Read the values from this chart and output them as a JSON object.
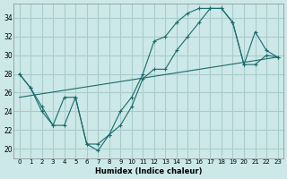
{
  "xlabel": "Humidex (Indice chaleur)",
  "bg_color": "#cce8e8",
  "grid_color": "#aacccc",
  "line_color": "#1a6b6b",
  "xlim": [
    -0.5,
    23.5
  ],
  "ylim": [
    19.0,
    35.5
  ],
  "xticks": [
    0,
    1,
    2,
    3,
    4,
    5,
    6,
    7,
    8,
    9,
    10,
    11,
    12,
    13,
    14,
    15,
    16,
    17,
    18,
    19,
    20,
    21,
    22,
    23
  ],
  "yticks": [
    20,
    22,
    24,
    26,
    28,
    30,
    32,
    34
  ],
  "line1_x": [
    0,
    1,
    2,
    3,
    4,
    5,
    6,
    7,
    8,
    9,
    10,
    11,
    12,
    13,
    14,
    15,
    16,
    17,
    18,
    19,
    20,
    21,
    22,
    23
  ],
  "line1_y": [
    28,
    26.5,
    24.5,
    22.5,
    22.5,
    25.5,
    20.5,
    19.8,
    21.5,
    22.5,
    24.5,
    27.5,
    28.5,
    28.5,
    30.5,
    32.0,
    33.5,
    35.0,
    35.0,
    33.5,
    29.0,
    29.0,
    30.0,
    29.8
  ],
  "line2_x": [
    0,
    1,
    2,
    3,
    4,
    5,
    6,
    7,
    8,
    9,
    10,
    11,
    12,
    13,
    14,
    15,
    16,
    17,
    18,
    19,
    20,
    21,
    22,
    23
  ],
  "line2_y": [
    28,
    26.5,
    24,
    22.5,
    25.5,
    25.5,
    20.5,
    20.5,
    21.5,
    24.0,
    25.5,
    28.0,
    31.5,
    32.0,
    33.5,
    34.5,
    35.0,
    35.0,
    35.0,
    33.5,
    29.0,
    32.5,
    30.5,
    29.8
  ],
  "line3_x": [
    0,
    23
  ],
  "line3_y": [
    25.5,
    29.8
  ]
}
